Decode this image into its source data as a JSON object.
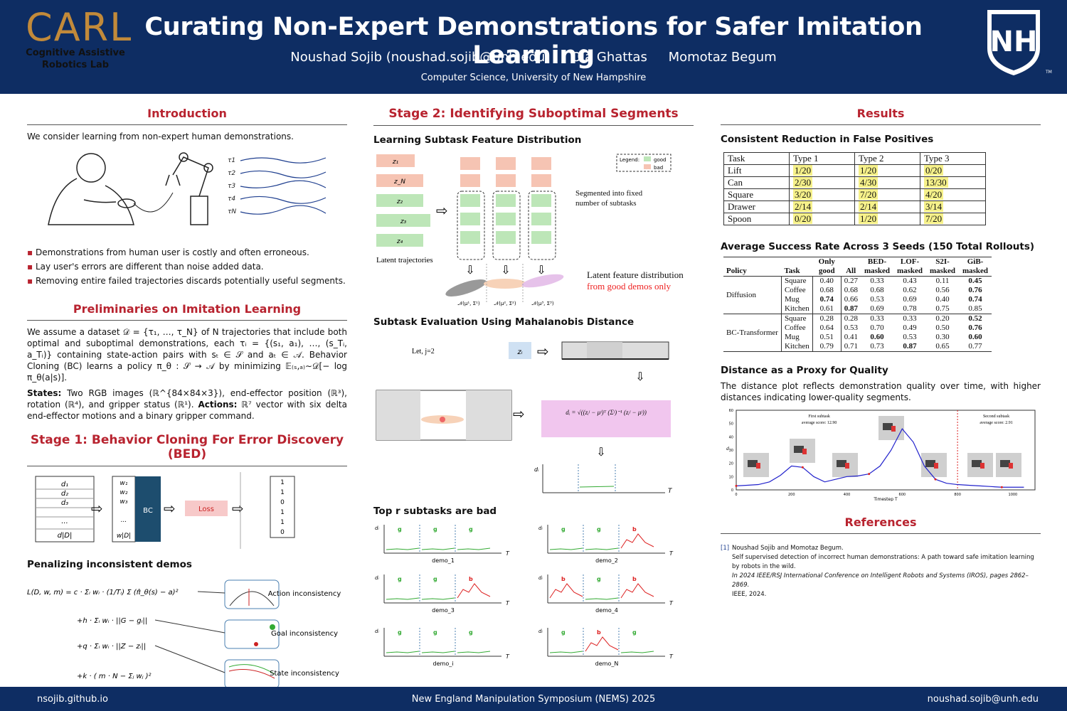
{
  "header": {
    "logo_text": "CARL",
    "logo_sub": "Cognitive Assistive Robotics Lab",
    "title": "Curating Non-Expert Demonstrations for Safer Imitation Learning",
    "authors": [
      "Noushad Sojib (noushad.sojib@unh.edu)",
      "Ola Ghattas",
      "Momotaz Begum"
    ],
    "affiliation": "Computer Science, University of New Hampshire",
    "unh_logo": "NH",
    "unh_tm": "TM"
  },
  "intro": {
    "title": "Introduction",
    "text": "We consider learning from non-expert human demonstrations.",
    "traj_labels": [
      "τ1",
      "τ2",
      "τ3",
      "τ4",
      "τN"
    ],
    "bullets": [
      "Demonstrations from human user is costly and often erroneous.",
      "Lay user's errors are different than noise added data.",
      "Removing entire failed trajectories discards potentially useful segments."
    ]
  },
  "prelim": {
    "title": "Preliminaries on Imitation Learning",
    "text": "We assume a dataset 𝒟 = {τ₁, …, τ_N} of N trajectories that include both optimal and suboptimal demonstrations, each τᵢ = {(s₁, a₁), …, (s_Tᵢ, a_Tᵢ)} containing state-action pairs with sₜ ∈ 𝒮 and aₜ ∈ 𝒜. Behavior Cloning (BC) learns a policy π_θ : 𝒮 → 𝒜 by minimizing 𝔼₍ₛ,ₐ₎∼𝒟[− log π_θ(a|s)].",
    "states_label": "States:",
    "states_text": "Two RGB images (ℝ^{84×84×3}), end-effector position (ℝ³), rotation (ℝ⁴), and gripper status (ℝ¹).",
    "actions_label": "Actions:",
    "actions_text": "ℝ⁷ vector with six delta end-effector motions and a binary gripper command."
  },
  "stage1": {
    "title": "Stage 1: Behavior Cloning For Error Discovery (BED)",
    "d_labels": [
      "d₁",
      "d₂",
      "d₃",
      "...",
      "d|D|"
    ],
    "w_labels": [
      "w₁",
      "w₂",
      "w₃",
      "...",
      "w|D|"
    ],
    "bc_label": "BC",
    "loss_label": "Loss",
    "out_values": [
      "1",
      "1",
      "0",
      "1",
      "1",
      "0"
    ],
    "penalty_title": "Penalizing inconsistent demos",
    "eq_lines": [
      "L(D, w, m) = c · Σᵢ wᵢ · (1/Tᵢ) Σ (π̂_θ(s) − a)²",
      "+h · Σᵢ wᵢ · ||G − gᵢ||",
      "+q · Σᵢ wᵢ · ||Z − zᵢ||",
      "+k · ( m · N − Σⱼ wⱼ )²"
    ],
    "consistency": [
      "Action inconsistency",
      "Goal inconsistency",
      "State inconsistency"
    ]
  },
  "stage2": {
    "title": "Stage 2: Identifying Suboptimal Segments",
    "learning_title": "Learning Subtask Feature Distribution",
    "latent_labels": [
      "z₁",
      "z_N",
      "z₂",
      "z₃",
      "z₄"
    ],
    "latent_caption": "Latent trajectories",
    "segment_caption": "Segmented into fixed number of subtasks",
    "legend_title": "Legend:",
    "legend_good": "good",
    "legend_bad": "bad",
    "latent_feature_text": "Latent feature distribution",
    "latent_feature_red": "from good demos only",
    "gauss_labels": [
      "𝒩(μ¹, Σ¹)",
      "𝒩(μ², Σ²)",
      "𝒩(μ³, Σ³)"
    ],
    "eval_title": "Subtask Evaluation Using Mahalanobis Distance",
    "let_text": "Let, j=2",
    "zi_label": "zᵢ",
    "mahal": "dᵢ = √((zᵢʲ − μʲ)ᵀ (Σʲ)⁻¹ (zᵢʲ − μʲ))",
    "top_title": "Top r subtasks are bad",
    "demo_labels": [
      "demo_1",
      "demo_2",
      "demo_3",
      "demo_4",
      "demo_i",
      "demo_N"
    ],
    "axis_t": "T",
    "axis_d": "dᵢ",
    "g_label": "g",
    "b_label": "b"
  },
  "results": {
    "title": "Results",
    "fp_title": "Consistent Reduction in False Positives",
    "fp_header": [
      "Task",
      "Type 1",
      "Type 2",
      "Type 3"
    ],
    "fp_rows": [
      [
        "Lift",
        "1/20",
        "1/20",
        "0/20"
      ],
      [
        "Can",
        "2/30",
        "4/30",
        "13/30"
      ],
      [
        "Square",
        "3/20",
        "7/20",
        "4/20"
      ],
      [
        "Drawer",
        "2/14",
        "2/14",
        "3/14"
      ],
      [
        "Spoon",
        "0/20",
        "1/20",
        "7/20"
      ]
    ],
    "sr_title": "Average Success Rate Across 3 Seeds (150 Total Rollouts)",
    "sr_header": [
      "Policy",
      "Task",
      "Only good",
      "All",
      "BED-masked",
      "LOF-masked",
      "S2I-masked",
      "GiB-masked"
    ],
    "sr_groups": [
      {
        "policy": "Diffusion",
        "rows": [
          [
            "Square",
            "0.40",
            "0.27",
            "0.33",
            "0.43",
            "0.11",
            "0.45"
          ],
          [
            "Coffee",
            "0.68",
            "0.68",
            "0.68",
            "0.62",
            "0.56",
            "0.76"
          ],
          [
            "Mug",
            "0.74",
            "0.66",
            "0.53",
            "0.69",
            "0.40",
            "0.74"
          ],
          [
            "Kitchen",
            "0.61",
            "0.87",
            "0.69",
            "0.78",
            "0.75",
            "0.85"
          ]
        ]
      },
      {
        "policy": "BC-Transformer",
        "rows": [
          [
            "Square",
            "0.28",
            "0.28",
            "0.33",
            "0.33",
            "0.20",
            "0.52"
          ],
          [
            "Coffee",
            "0.64",
            "0.53",
            "0.70",
            "0.49",
            "0.50",
            "0.76"
          ],
          [
            "Mug",
            "0.51",
            "0.41",
            "0.60",
            "0.53",
            "0.30",
            "0.60"
          ],
          [
            "Kitchen",
            "0.79",
            "0.71",
            "0.73",
            "0.87",
            "0.65",
            "0.77"
          ]
        ]
      }
    ],
    "dist_title": "Distance as a Proxy for Quality",
    "dist_text": "The distance plot reflects demonstration quality over time, with higher distances indicating lower-quality segments.",
    "plot_first": "First subtask",
    "plot_first_score": "average score: 12.90",
    "plot_second": "Second subtask",
    "plot_second_score": "average score: 2.91",
    "plot_xlabel": "Timestep T",
    "plot_ylabel": "d",
    "plot_yticks": [
      "0",
      "10",
      "20",
      "30",
      "40",
      "50",
      "60"
    ],
    "plot_xticks": [
      "0",
      "200",
      "400",
      "600",
      "800",
      "1000"
    ]
  },
  "chart_data": {
    "type": "line",
    "title": "",
    "xlabel": "Timestep T",
    "ylabel": "d",
    "xlim": [
      0,
      1080
    ],
    "ylim": [
      0,
      60
    ],
    "x": [
      0,
      40,
      80,
      120,
      160,
      200,
      240,
      280,
      320,
      360,
      400,
      440,
      480,
      520,
      560,
      600,
      640,
      680,
      720,
      760,
      800,
      840,
      880,
      920,
      960,
      1000,
      1040
    ],
    "series": [
      {
        "values": [
          3,
          3.5,
          4,
          6,
          11,
          18,
          17,
          10,
          6,
          8,
          10,
          10.5,
          12,
          18,
          30,
          46,
          36,
          18,
          8,
          5,
          4,
          3.5,
          3,
          2.5,
          2,
          2,
          2
        ]
      }
    ],
    "annotations": [
      "First subtask",
      "average score: 12.90",
      "Second subtask",
      "average score: 2.91"
    ],
    "vline_x": 800
  },
  "references": {
    "title": "References",
    "num": "[1]",
    "line1": "Noushad Sojib and Momotaz Begum.",
    "line2": "Self supervised detection of incorrect human demonstrations: A path toward safe imitation learning by robots in the wild.",
    "line3": "In 2024 IEEE/RSJ International Conference on Intelligent Robots and Systems (IROS), pages 2862–2869.",
    "line4": "IEEE, 2024."
  },
  "footer": {
    "left": "nsojib.github.io",
    "center": "New England Manipulation Symposium (NEMS) 2025",
    "right": "noushad.sojib@unh.edu"
  },
  "colors": {
    "navy": "#0e2d63",
    "accent_red": "#b8232f",
    "gold": "#c28a3a",
    "good": "#bde6b8",
    "bad": "#f6c4b3"
  }
}
